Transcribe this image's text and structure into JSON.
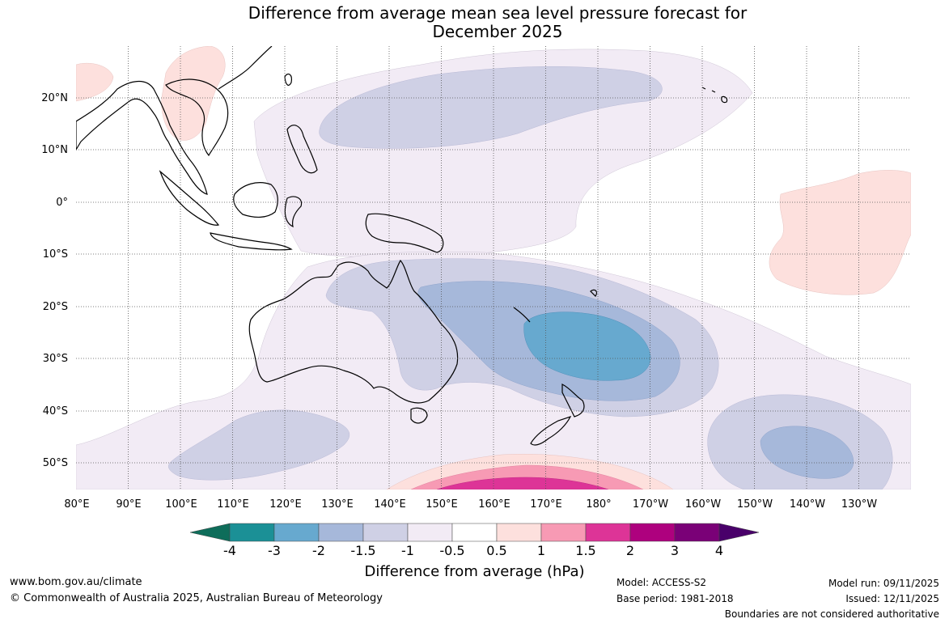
{
  "title_line1": "Difference from average mean sea level pressure forecast for",
  "title_line2": "December 2025",
  "lat_labels": [
    "20°N",
    "10°N",
    "0°",
    "10°S",
    "20°S",
    "30°S",
    "40°S",
    "50°S"
  ],
  "lon_labels": [
    "80°E",
    "90°E",
    "100°E",
    "110°E",
    "120°E",
    "130°E",
    "140°E",
    "150°E",
    "160°E",
    "170°E",
    "180°",
    "170°W",
    "160°W",
    "150°W",
    "140°W",
    "130°W"
  ],
  "colorbar": {
    "title": "Difference from average (hPa)",
    "labels": [
      "-4",
      "-3",
      "-2",
      "-1.5",
      "-1",
      "-0.5",
      "0.5",
      "1",
      "1.5",
      "2",
      "3",
      "4"
    ],
    "colors": [
      "#0e6d5a",
      "#1b9096",
      "#67a9cf",
      "#a6b8da",
      "#cfd0e5",
      "#f2ebf5",
      "#ffffff",
      "#fde0dd",
      "#f79ab4",
      "#dd3497",
      "#ae017e",
      "#7a0177",
      "#49006a"
    ]
  },
  "footer": {
    "url": "www.bom.gov.au/climate",
    "copyright": "© Commonwealth of Australia 2025, Australian Bureau of Meteorology",
    "model": "Model: ACCESS-S2",
    "base_period": "Base period: 1981-2018",
    "model_run": "Model run: 09/11/2025",
    "issued": "Issued: 12/11/2025",
    "disclaimer": "Boundaries are not considered authoritative"
  }
}
